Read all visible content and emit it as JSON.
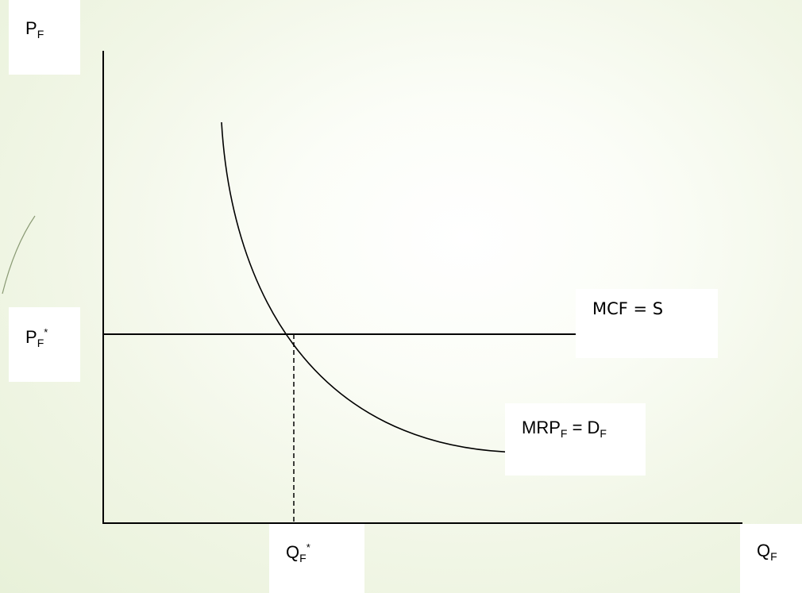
{
  "labels": {
    "y_axis": {
      "main": "P",
      "sub": "F"
    },
    "y_equilibrium": {
      "main": "P",
      "sub": "F",
      "sup": "*"
    },
    "supply_curve": "MCF = S",
    "demand_curve": {
      "a": "MRP",
      "a_sub": "F",
      "mid": " = D",
      "b_sub": "F"
    },
    "x_equilibrium": {
      "main": "Q",
      "sub": "F",
      "sup": "*"
    },
    "x_axis": {
      "main": "Q",
      "sub": "F"
    }
  },
  "colors": {
    "lines": "#000000",
    "label_background": "#ffffff",
    "slide_background": "#eef4e2"
  }
}
